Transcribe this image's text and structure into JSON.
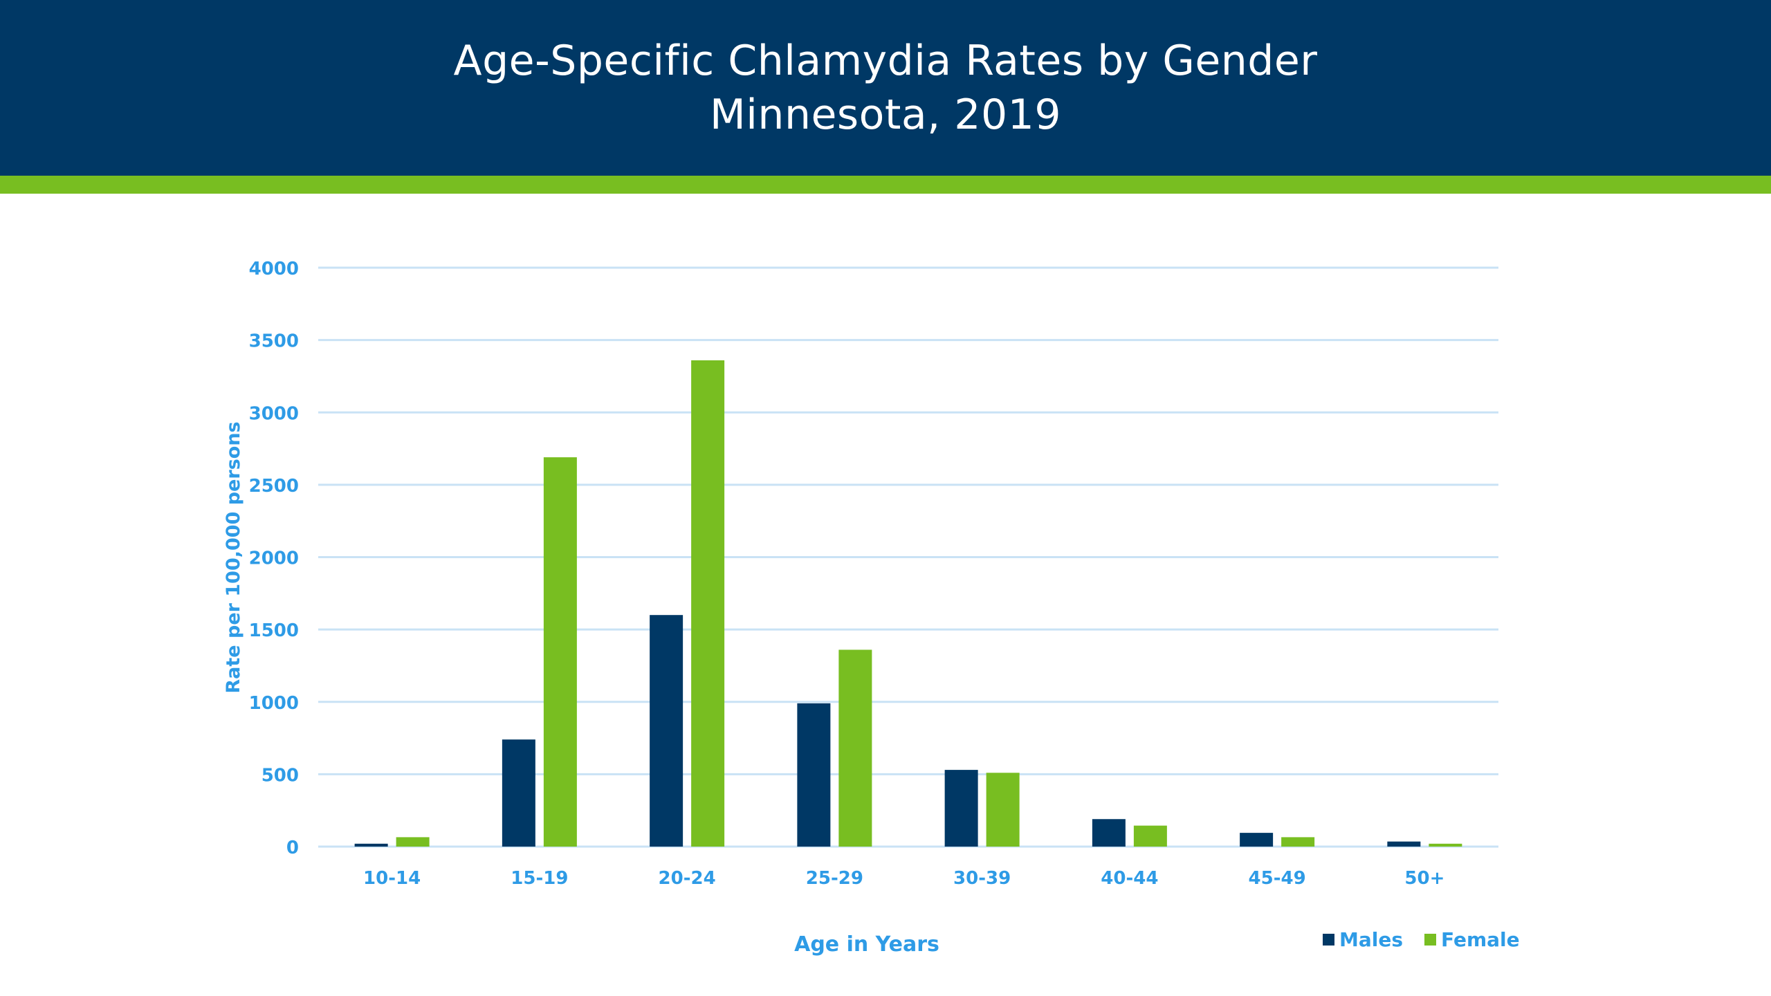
{
  "title_line1": "Age-Specific Chlamydia Rates by Gender",
  "title_line2": "Minnesota, 2019",
  "colors": {
    "header_bg": "#003865",
    "accent": "#78BE21",
    "males": "#003865",
    "female": "#78BE21",
    "axis_text": "#2E9BE6",
    "grid": "#C9E2F5"
  },
  "chart_data": {
    "type": "bar",
    "categories": [
      "10-14",
      "15-19",
      "20-24",
      "25-29",
      "30-39",
      "40-44",
      "45-49",
      "50+"
    ],
    "series": [
      {
        "name": "Males",
        "values": [
          20,
          740,
          1600,
          990,
          530,
          190,
          95,
          35
        ]
      },
      {
        "name": "Female",
        "values": [
          65,
          2690,
          3360,
          1360,
          510,
          145,
          65,
          20
        ]
      }
    ],
    "yticks": [
      "0",
      "500",
      "1000",
      "1500",
      "2000",
      "2500",
      "3000",
      "3500",
      "4000"
    ],
    "ylim": [
      0,
      4000
    ],
    "xlabel": "Age in Years",
    "ylabel": "Rate per 100,000 persons",
    "grid": true,
    "legend_position": "bottom-right"
  }
}
